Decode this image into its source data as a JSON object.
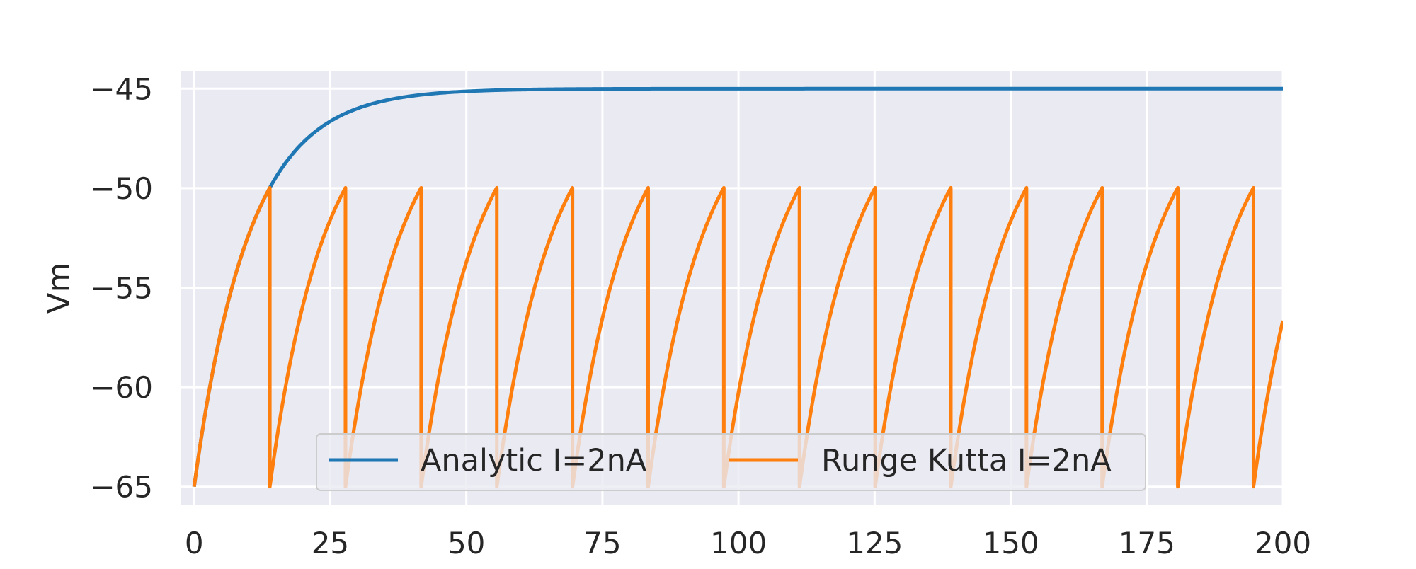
{
  "chart_data": {
    "type": "line",
    "title": "",
    "xlabel": "",
    "ylabel": "Vm",
    "xlim": [
      -2.5,
      200
    ],
    "ylim": [
      -65.9,
      -44.1
    ],
    "xticks": [
      0,
      25,
      50,
      75,
      100,
      125,
      150,
      175,
      200
    ],
    "yticks": [
      -45,
      -50,
      -55,
      -60,
      -65
    ],
    "xtick_labels": [
      "0",
      "25",
      "50",
      "75",
      "100",
      "125",
      "150",
      "175",
      "200"
    ],
    "ytick_labels": [
      "−45",
      "−50",
      "−55",
      "−60",
      "−65"
    ],
    "grid": true,
    "legend": {
      "position": "lower center",
      "ncol": 2
    },
    "background_color": "#EAEAF2",
    "grid_color": "#FFFFFF",
    "model": {
      "v_rest": -65,
      "v_threshold": -50,
      "v_reset": -65,
      "v_inf": -45,
      "tau": 10,
      "t_start": 0,
      "t_end": 200
    },
    "series": [
      {
        "name": "Analytic I=2nA",
        "color": "#1F77B4",
        "kind": "analytic"
      },
      {
        "name": "Runge Kutta I=2nA",
        "color": "#FF7F0E",
        "kind": "integrate-and-fire",
        "spike_times": [
          13.9,
          27.8,
          41.7,
          55.6,
          69.5,
          83.4,
          97.3,
          111.2,
          125.1,
          139.0,
          152.9,
          166.8,
          180.7,
          194.6
        ]
      }
    ]
  }
}
